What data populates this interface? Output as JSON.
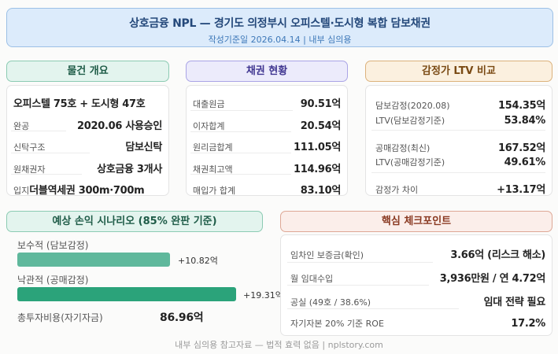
{
  "header": {
    "title": "상호금융 NPL — 경기도 의정부시 오피스텔·도시형 복합 담보채권",
    "subtitle": "작성기준일 2026.04.14 | 내부 심의용"
  },
  "property": {
    "title": "물건 개요",
    "headline": "오피스텔 75호 + 도시형 47호",
    "rows": [
      {
        "label": "완공",
        "value": "2020.06 사용승인"
      },
      {
        "label": "신탁구조",
        "value": "담보신탁"
      },
      {
        "label": "원채권자",
        "value": "상호금융 3개사"
      },
      {
        "label": "입지",
        "value": "더블역세권 300m·700m"
      }
    ]
  },
  "bond": {
    "title": "채권 현황",
    "rows": [
      {
        "label": "대출원금",
        "value": "90.51억"
      },
      {
        "label": "이자합계",
        "value": "20.54억"
      },
      {
        "label": "원리금합계",
        "value": "111.05억"
      },
      {
        "label": "채권최고액",
        "value": "114.96억"
      },
      {
        "label": "매입가 합계",
        "value": "83.10억"
      }
    ]
  },
  "ltv": {
    "title": "감정가 LTV 비교",
    "rows": [
      {
        "label": "담보감정(2020.08)",
        "value": "154.35억"
      },
      {
        "label": "LTV(담보감정기준)",
        "value": "53.84%"
      },
      {
        "label": "공매감정(최신)",
        "value": "167.52억"
      },
      {
        "label": "LTV(공매감정기준)",
        "value": "49.61%"
      },
      {
        "label": "감정가 차이",
        "value": "+13.17억"
      }
    ]
  },
  "scenario": {
    "title": "예상 손익 시나리오 (85% 완판 기준)",
    "items": [
      {
        "label": "보수적 (담보감정)",
        "value": "+10.82억",
        "color": "#5fb89c"
      },
      {
        "label": "낙관적 (공매감정)",
        "value": "+19.31억",
        "color": "#2ba37a"
      }
    ],
    "total_label": "총투자비용(자기자금)",
    "total_value": "86.96억"
  },
  "checkpoints": {
    "title": "핵심 체크포인트",
    "rows": [
      {
        "label": "임차인 보증금(확인)",
        "value": "3.66억 (리스크 해소)"
      },
      {
        "label": "월 임대수입",
        "value": "3,936만원 / 연 4.72억"
      },
      {
        "label": "공실 (49호 / 38.6%)",
        "value": "임대 전략 필요"
      },
      {
        "label": "자기자본 20% 기준 ROE",
        "value": "17.2%"
      }
    ]
  },
  "footer": "내부 심의용 참고자료 — 법적 효력 없음 | nplstory.com"
}
